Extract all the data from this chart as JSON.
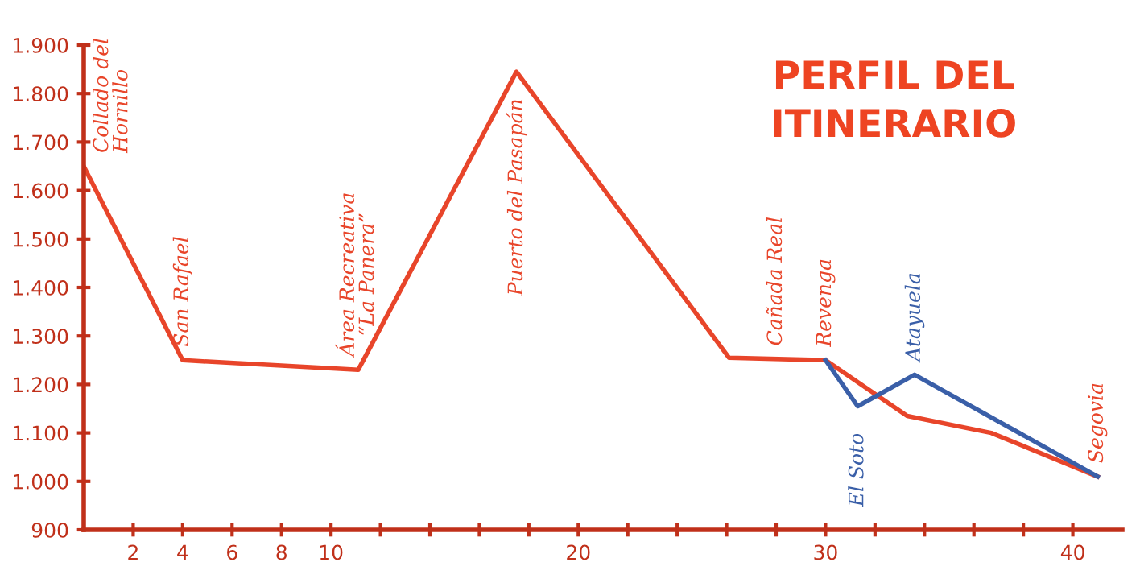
{
  "chart_data": {
    "type": "line",
    "title": "PERFIL DEL\nITINERARIO",
    "series": [
      {
        "color": "#e8452a",
        "x": [
          0,
          4,
          11.1,
          17.5,
          26.1,
          30,
          33.3,
          36.7,
          41
        ],
        "values": [
          1650,
          1250,
          1230,
          1845,
          1255,
          1250,
          1135,
          1100,
          1010
        ]
      },
      {
        "color": "#3a5fa8",
        "x": [
          30,
          31.3,
          33.6,
          41
        ],
        "values": [
          1250,
          1155,
          1220,
          1010
        ]
      }
    ],
    "xlim": [
      0,
      42
    ],
    "xticks": [
      {
        "value": 2,
        "label": "2"
      },
      {
        "value": 4,
        "label": "4"
      },
      {
        "value": 6,
        "label": "6"
      },
      {
        "value": 8,
        "label": "8"
      },
      {
        "value": 10,
        "label": "10"
      },
      {
        "value": 12,
        "label": null
      },
      {
        "value": 14,
        "label": null
      },
      {
        "value": 16,
        "label": null
      },
      {
        "value": 18,
        "label": null
      },
      {
        "value": 20,
        "label": "20"
      },
      {
        "value": 22,
        "label": null
      },
      {
        "value": 24,
        "label": null
      },
      {
        "value": 26,
        "label": null
      },
      {
        "value": 28,
        "label": null
      },
      {
        "value": 30,
        "label": "30"
      },
      {
        "value": 32,
        "label": null
      },
      {
        "value": 34,
        "label": null
      },
      {
        "value": 36,
        "label": null
      },
      {
        "value": 38,
        "label": null
      },
      {
        "value": 40,
        "label": "40"
      }
    ],
    "ylim": [
      900,
      1900
    ],
    "yticks": [
      {
        "value": 900,
        "label": "900"
      },
      {
        "value": 1000,
        "label": "1.000"
      },
      {
        "value": 1100,
        "label": "1.100"
      },
      {
        "value": 1200,
        "label": "1.200"
      },
      {
        "value": 1300,
        "label": "1.300"
      },
      {
        "value": 1400,
        "label": "1.400"
      },
      {
        "value": 1500,
        "label": "1.500"
      },
      {
        "value": 1600,
        "label": "1.600"
      },
      {
        "value": 1700,
        "label": "1.700"
      },
      {
        "value": 1800,
        "label": "1.800"
      },
      {
        "value": 1900,
        "label": "1.900"
      }
    ],
    "grid": false,
    "legend": false,
    "marker": "none",
    "line_style": "solid",
    "annotations": [
      {
        "text": "Collado del\nHornillo",
        "x": 0,
        "y": 1650
      },
      {
        "text": "San Rafael",
        "x": 4,
        "y": 1250
      },
      {
        "text": "Área Recreativa\n“La Panera”",
        "x": 11.1,
        "y": 1230
      },
      {
        "text": "Puerto del Pasapán",
        "x": 17.5,
        "y": 1845
      },
      {
        "text": "Cañada Real",
        "x": 28,
        "y": 1252
      },
      {
        "text": "Revenga",
        "x": 30,
        "y": 1250
      },
      {
        "text": "El Soto",
        "x": 31.3,
        "y": 1155
      },
      {
        "text": "Atayuela",
        "x": 33.6,
        "y": 1220
      },
      {
        "text": "Segovia",
        "x": 41,
        "y": 1010
      }
    ]
  }
}
